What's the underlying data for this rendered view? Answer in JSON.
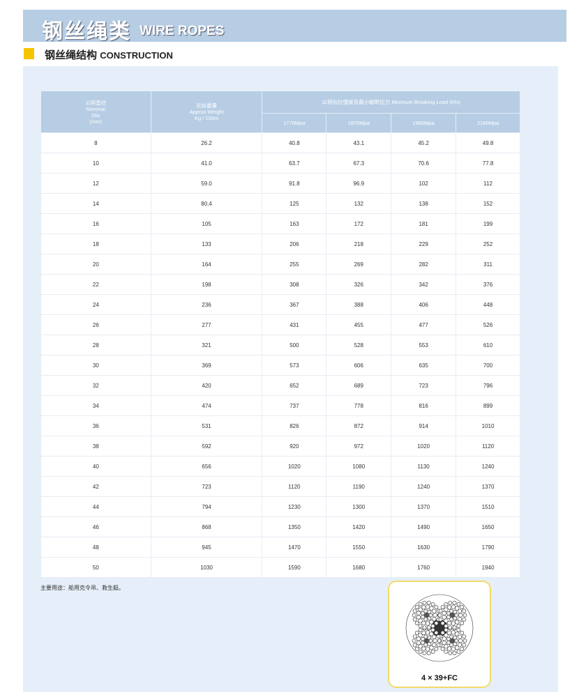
{
  "banner": {
    "title_zh": "钢丝绳类",
    "title_en": "WIRE ROPES"
  },
  "section": {
    "title_zh": "钢丝绳结构",
    "title_en": "CONSTRUCTION"
  },
  "table": {
    "headers": {
      "dia": [
        "公称直径",
        "Nominal",
        "Dia",
        "(mm)"
      ],
      "weight": [
        "近似重量",
        "Approx Weight",
        "Kg / 100m"
      ],
      "load": "公称抗拉强度及最小破断拉力 Minimum Breaking Load (KN)",
      "grades": [
        "1770Mpa",
        "1870Mpa",
        "1960Mpa",
        "2160Mpa"
      ]
    },
    "rows": [
      [
        "8",
        "26.2",
        "40.8",
        "43.1",
        "45.2",
        "49.8"
      ],
      [
        "10",
        "41.0",
        "63.7",
        "67.3",
        "70.6",
        "77.8"
      ],
      [
        "12",
        "59.0",
        "91.8",
        "96.9",
        "102",
        "112"
      ],
      [
        "14",
        "80.4",
        "125",
        "132",
        "138",
        "152"
      ],
      [
        "16",
        "105",
        "163",
        "172",
        "181",
        "199"
      ],
      [
        "18",
        "133",
        "206",
        "218",
        "229",
        "252"
      ],
      [
        "20",
        "164",
        "255",
        "269",
        "282",
        "311"
      ],
      [
        "22",
        "198",
        "308",
        "326",
        "342",
        "376"
      ],
      [
        "24",
        "236",
        "367",
        "388",
        "406",
        "448"
      ],
      [
        "26",
        "277",
        "431",
        "455",
        "477",
        "526"
      ],
      [
        "28",
        "321",
        "500",
        "528",
        "553",
        "610"
      ],
      [
        "30",
        "369",
        "573",
        "606",
        "635",
        "700"
      ],
      [
        "32",
        "420",
        "652",
        "689",
        "723",
        "796"
      ],
      [
        "34",
        "474",
        "737",
        "778",
        "816",
        "899"
      ],
      [
        "36",
        "531",
        "826",
        "872",
        "914",
        "1010"
      ],
      [
        "38",
        "592",
        "920",
        "972",
        "1020",
        "1120"
      ],
      [
        "40",
        "656",
        "1020",
        "1080",
        "1130",
        "1240"
      ],
      [
        "42",
        "723",
        "1120",
        "1190",
        "1240",
        "1370"
      ],
      [
        "44",
        "794",
        "1230",
        "1300",
        "1370",
        "1510"
      ],
      [
        "46",
        "868",
        "1350",
        "1420",
        "1490",
        "1650"
      ],
      [
        "48",
        "945",
        "1470",
        "1550",
        "1630",
        "1790"
      ],
      [
        "50",
        "1030",
        "1590",
        "1680",
        "1760",
        "1940"
      ]
    ]
  },
  "note": "主要用途：船用克令吊、救生艇。",
  "figure": {
    "label": "4 × 39+FC"
  },
  "colors": {
    "banner": "#b6cde4",
    "accent": "#f5c400",
    "panel": "#e6eff9"
  }
}
